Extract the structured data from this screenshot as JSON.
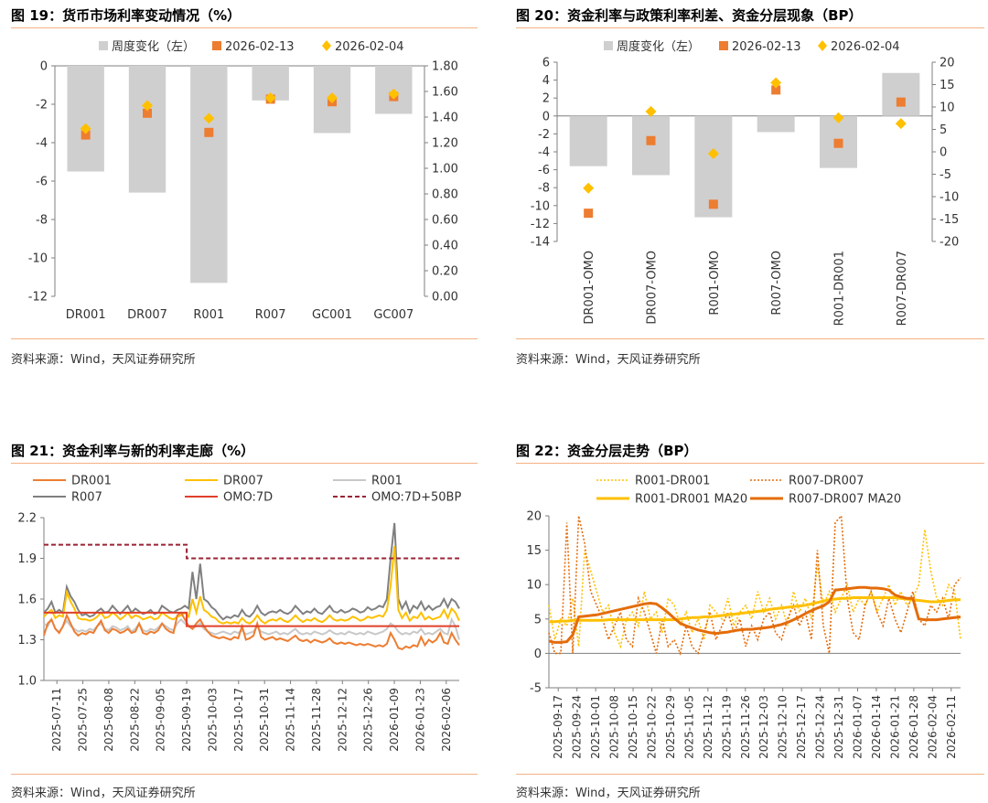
{
  "colors": {
    "bar": "#d0cfcf",
    "orange": "#ed7d31",
    "gold": "#ffc000",
    "darkorange": "#e46c0a",
    "gray": "#808080",
    "lightgray": "#c8c8c8",
    "red": "#e0402a",
    "maroon": "#9b2335",
    "accent_line": "#f4b183"
  },
  "source_text": "资料来源：Wind，天风证券研究所",
  "chart_data": [
    {
      "id": "fig19",
      "type": "bar",
      "title": "图 19：货币市场利率变动情况（%）",
      "legend": [
        "周度变化（左）",
        "2026-02-13",
        "2026-02-04"
      ],
      "categories": [
        "DR001",
        "DR007",
        "R001",
        "R007",
        "GC001",
        "GC007"
      ],
      "series": [
        {
          "name": "周度变化（左）",
          "axis": "left",
          "values": [
            -5.5,
            -6.6,
            -11.3,
            -1.8,
            -3.5,
            -2.5
          ]
        },
        {
          "name": "2026-02-13",
          "axis": "right",
          "values": [
            1.26,
            1.43,
            1.28,
            1.54,
            1.52,
            1.56
          ]
        },
        {
          "name": "2026-02-04",
          "axis": "right",
          "values": [
            1.31,
            1.49,
            1.39,
            1.55,
            1.55,
            1.58
          ]
        }
      ],
      "left_ticks": [
        "0",
        "-2",
        "-4",
        "-6",
        "-8",
        "-10",
        "-12"
      ],
      "right_ticks": [
        "1.80",
        "1.60",
        "1.40",
        "1.20",
        "1.00",
        "0.80",
        "0.60",
        "0.40",
        "0.20",
        "0.00"
      ],
      "ylim_left": [
        -12,
        0
      ],
      "ylim_right": [
        0,
        1.8
      ]
    },
    {
      "id": "fig20",
      "type": "bar",
      "title": "图 20：资金利率与政策利率利差、资金分层现象（BP）",
      "legend": [
        "周度变化（左）",
        "2026-02-13",
        "2026-02-04"
      ],
      "categories": [
        "DR001-OMO",
        "DR007-OMO",
        "R001-OMO",
        "R007-OMO",
        "R001-DR001",
        "R007-DR007"
      ],
      "series": [
        {
          "name": "周度变化（左）",
          "axis": "left",
          "values": [
            -5.6,
            -6.6,
            -11.3,
            -1.8,
            -5.8,
            4.8
          ]
        },
        {
          "name": "2026-02-13",
          "axis": "right",
          "values": [
            -13.7,
            2.5,
            -11.7,
            13.8,
            1.9,
            11.1
          ]
        },
        {
          "name": "2026-02-04",
          "axis": "right",
          "values": [
            -8.1,
            9.0,
            -0.4,
            15.4,
            7.6,
            6.3
          ]
        }
      ],
      "left_ticks": [
        "6",
        "4",
        "2",
        "0",
        "-2",
        "-4",
        "-6",
        "-8",
        "-10",
        "-12",
        "-14"
      ],
      "right_ticks": [
        "20",
        "15",
        "10",
        "5",
        "0",
        "-5",
        "-10",
        "-15",
        "-20"
      ],
      "ylim_left": [
        -14,
        6
      ],
      "ylim_right": [
        -20,
        20
      ]
    },
    {
      "id": "fig21",
      "type": "line",
      "title": "图 21：资金利率与新的利率走廊（%）",
      "legend": [
        "DR001",
        "DR007",
        "R001",
        "R007",
        "OMO:7D",
        "OMO:7D+50BP"
      ],
      "ylim": [
        1.0,
        2.2
      ],
      "y_ticks": [
        "2.2",
        "1.9",
        "1.6",
        "1.3",
        "1.0"
      ],
      "x_labels": [
        "2025-07-11",
        "2025-07-25",
        "2025-08-08",
        "2025-08-22",
        "2025-09-05",
        "2025-09-19",
        "2025-10-03",
        "2025-10-17",
        "2025-10-31",
        "2025-11-14",
        "2025-11-28",
        "2025-12-12",
        "2025-12-26",
        "2026-01-09",
        "2026-01-23",
        "2026-02-06"
      ],
      "series": [
        {
          "name": "R007",
          "values": [
            1.5,
            1.53,
            1.58,
            1.5,
            1.52,
            1.5,
            1.69,
            1.62,
            1.58,
            1.52,
            1.48,
            1.49,
            1.47,
            1.48,
            1.51,
            1.53,
            1.5,
            1.51,
            1.55,
            1.52,
            1.49,
            1.52,
            1.55,
            1.5,
            1.53,
            1.51,
            1.49,
            1.5,
            1.52,
            1.49,
            1.5,
            1.55,
            1.53,
            1.51,
            1.5,
            1.52,
            1.53,
            1.55,
            1.53,
            1.8,
            1.6,
            1.86,
            1.6,
            1.58,
            1.54,
            1.52,
            1.48,
            1.45,
            1.47,
            1.46,
            1.48,
            1.47,
            1.52,
            1.48,
            1.47,
            1.5,
            1.55,
            1.5,
            1.48,
            1.5,
            1.51,
            1.5,
            1.52,
            1.5,
            1.49,
            1.51,
            1.55,
            1.52,
            1.49,
            1.51,
            1.5,
            1.53,
            1.5,
            1.49,
            1.52,
            1.55,
            1.51,
            1.5,
            1.52,
            1.5,
            1.51,
            1.53,
            1.52,
            1.5,
            1.51,
            1.54,
            1.52,
            1.53,
            1.55,
            1.54,
            1.6,
            1.9,
            2.16,
            1.6,
            1.53,
            1.58,
            1.5,
            1.55,
            1.53,
            1.58,
            1.52,
            1.55,
            1.52,
            1.54,
            1.55,
            1.6,
            1.54,
            1.6,
            1.58,
            1.53
          ]
        },
        {
          "name": "R001",
          "values": [
            1.42,
            1.4,
            1.45,
            1.38,
            1.36,
            1.4,
            1.44,
            1.4,
            1.38,
            1.36,
            1.37,
            1.36,
            1.38,
            1.37,
            1.4,
            1.42,
            1.38,
            1.37,
            1.4,
            1.39,
            1.37,
            1.38,
            1.4,
            1.36,
            1.38,
            1.42,
            1.37,
            1.36,
            1.38,
            1.37,
            1.39,
            1.42,
            1.4,
            1.38,
            1.37,
            1.42,
            1.45,
            1.42,
            1.4,
            1.38,
            1.4,
            1.42,
            1.38,
            1.36,
            1.35,
            1.34,
            1.35,
            1.36,
            1.35,
            1.34,
            1.36,
            1.35,
            1.37,
            1.34,
            1.35,
            1.36,
            1.4,
            1.36,
            1.35,
            1.34,
            1.35,
            1.36,
            1.34,
            1.35,
            1.34,
            1.36,
            1.38,
            1.35,
            1.34,
            1.35,
            1.34,
            1.36,
            1.35,
            1.34,
            1.35,
            1.37,
            1.35,
            1.34,
            1.35,
            1.34,
            1.36,
            1.35,
            1.34,
            1.35,
            1.34,
            1.36,
            1.35,
            1.34,
            1.35,
            1.36,
            1.38,
            1.42,
            1.4,
            1.36,
            1.34,
            1.35,
            1.34,
            1.36,
            1.35,
            1.38,
            1.34,
            1.35,
            1.34,
            1.36,
            1.38,
            1.35,
            1.34,
            1.45,
            1.4,
            1.3
          ]
        },
        {
          "name": "DR007",
          "values": [
            1.47,
            1.5,
            1.52,
            1.46,
            1.48,
            1.47,
            1.65,
            1.58,
            1.53,
            1.46,
            1.45,
            1.45,
            1.44,
            1.45,
            1.47,
            1.5,
            1.46,
            1.47,
            1.5,
            1.48,
            1.45,
            1.47,
            1.5,
            1.46,
            1.48,
            1.47,
            1.45,
            1.46,
            1.47,
            1.45,
            1.46,
            1.5,
            1.48,
            1.46,
            1.45,
            1.47,
            1.48,
            1.5,
            1.47,
            1.6,
            1.5,
            1.62,
            1.52,
            1.5,
            1.47,
            1.46,
            1.43,
            1.42,
            1.43,
            1.42,
            1.43,
            1.42,
            1.46,
            1.43,
            1.42,
            1.44,
            1.48,
            1.44,
            1.42,
            1.44,
            1.45,
            1.44,
            1.46,
            1.44,
            1.43,
            1.45,
            1.48,
            1.45,
            1.43,
            1.45,
            1.44,
            1.46,
            1.44,
            1.43,
            1.45,
            1.48,
            1.45,
            1.44,
            1.45,
            1.44,
            1.45,
            1.47,
            1.46,
            1.44,
            1.45,
            1.47,
            1.46,
            1.47,
            1.48,
            1.47,
            1.52,
            1.7,
            1.99,
            1.52,
            1.46,
            1.5,
            1.44,
            1.47,
            1.46,
            1.5,
            1.45,
            1.47,
            1.45,
            1.46,
            1.47,
            1.52,
            1.46,
            1.53,
            1.5,
            1.44
          ]
        },
        {
          "name": "DR001",
          "values": [
            1.33,
            1.42,
            1.45,
            1.38,
            1.35,
            1.4,
            1.48,
            1.42,
            1.36,
            1.33,
            1.35,
            1.34,
            1.36,
            1.35,
            1.4,
            1.44,
            1.37,
            1.35,
            1.38,
            1.37,
            1.35,
            1.36,
            1.38,
            1.35,
            1.36,
            1.42,
            1.35,
            1.34,
            1.36,
            1.35,
            1.37,
            1.42,
            1.38,
            1.36,
            1.35,
            1.48,
            1.5,
            1.45,
            1.4,
            1.38,
            1.42,
            1.45,
            1.4,
            1.36,
            1.33,
            1.32,
            1.31,
            1.32,
            1.31,
            1.3,
            1.32,
            1.31,
            1.4,
            1.3,
            1.31,
            1.33,
            1.42,
            1.32,
            1.3,
            1.31,
            1.32,
            1.3,
            1.31,
            1.3,
            1.29,
            1.31,
            1.33,
            1.3,
            1.29,
            1.3,
            1.28,
            1.3,
            1.29,
            1.28,
            1.29,
            1.31,
            1.28,
            1.27,
            1.28,
            1.27,
            1.28,
            1.27,
            1.26,
            1.27,
            1.26,
            1.27,
            1.26,
            1.25,
            1.26,
            1.25,
            1.27,
            1.35,
            1.3,
            1.24,
            1.23,
            1.25,
            1.24,
            1.26,
            1.25,
            1.32,
            1.26,
            1.3,
            1.28,
            1.3,
            1.35,
            1.28,
            1.27,
            1.35,
            1.3,
            1.26
          ]
        }
      ],
      "corridor": {
        "omo_before": 1.5,
        "omo_after": 1.4,
        "upper_before": 2.0,
        "upper_after": 1.9,
        "switch_date": "2025-09-19"
      }
    },
    {
      "id": "fig22",
      "type": "line",
      "title": "图 22：资金分层走势（BP）",
      "legend": [
        "R001-DR001",
        "R007-DR007",
        "R001-DR001 MA20",
        "R007-DR007 MA20"
      ],
      "ylim": [
        -5,
        20
      ],
      "y_ticks": [
        "20",
        "15",
        "10",
        "5",
        "0",
        "-5"
      ],
      "x_labels": [
        "2025-09-17",
        "2025-09-24",
        "2025-10-01",
        "2025-10-08",
        "2025-10-15",
        "2025-10-22",
        "2025-10-29",
        "2025-11-05",
        "2025-11-12",
        "2025-11-19",
        "2025-11-26",
        "2025-12-03",
        "2025-12-10",
        "2025-12-17",
        "2025-12-24",
        "2025-12-31",
        "2026-01-07",
        "2026-01-14",
        "2026-01-21",
        "2026-01-28",
        "2026-02-04",
        "2026-02-11"
      ],
      "series": [
        {
          "name": "R001-DR001",
          "values": [
            7,
            2,
            5,
            4,
            8,
            1,
            15,
            12,
            9,
            6,
            7,
            3,
            1,
            5,
            6,
            4,
            9,
            5,
            6,
            3,
            8,
            7,
            4,
            6,
            3,
            5,
            2,
            7,
            6,
            5,
            8,
            4,
            6,
            7,
            5,
            9,
            6,
            8,
            5,
            7,
            4,
            9,
            6,
            8,
            5,
            13,
            7,
            9,
            6,
            8,
            10,
            6,
            8,
            7,
            9,
            6,
            8,
            10,
            7,
            9,
            7,
            8,
            10,
            18,
            12,
            8,
            7,
            10,
            9,
            2
          ]
        },
        {
          "name": "R007-DR007",
          "values": [
            3,
            0,
            0,
            19,
            0,
            20,
            16,
            9,
            7,
            5,
            2,
            4,
            6,
            2,
            1,
            8,
            6,
            3,
            0,
            5,
            1,
            2,
            0,
            4,
            1,
            0,
            3,
            6,
            2,
            4,
            6,
            3,
            5,
            1,
            4,
            2,
            5,
            6,
            3,
            2,
            5,
            7,
            4,
            6,
            2,
            15,
            4,
            0,
            19,
            20,
            8,
            3,
            2,
            7,
            9,
            6,
            4,
            8,
            5,
            3,
            6,
            9,
            5,
            4,
            7,
            6,
            8,
            5,
            10,
            11
          ]
        },
        {
          "name": "R001-DR001 MA20",
          "values": [
            4.6,
            4.6,
            4.7,
            4.7,
            4.8,
            4.8,
            4.8,
            4.8,
            4.8,
            4.8,
            4.9,
            4.9,
            4.9,
            4.9,
            4.9,
            4.9,
            4.9,
            4.9,
            4.9,
            4.9,
            4.9,
            4.9,
            5.0,
            5.1,
            5.2,
            5.2,
            5.3,
            5.3,
            5.4,
            5.5,
            5.6,
            5.7,
            5.8,
            5.9,
            6.0,
            6.1,
            6.2,
            6.4,
            6.5,
            6.6,
            6.7,
            6.8,
            6.9,
            7.0,
            7.2,
            7.4,
            7.6,
            7.8,
            7.9,
            8.0,
            8.0,
            8.1,
            8.1,
            8.1,
            8.1,
            8.1,
            8.1,
            8.1,
            8.1,
            8.0,
            7.9,
            7.8,
            7.7,
            7.6,
            7.5,
            7.5,
            7.6,
            7.7,
            7.8,
            7.8
          ]
        },
        {
          "name": "R007-DR007 MA20",
          "values": [
            1.8,
            1.6,
            1.6,
            1.7,
            2.7,
            5.3,
            5.4,
            5.5,
            5.6,
            5.8,
            6.0,
            6.2,
            6.4,
            6.6,
            6.8,
            7.0,
            7.2,
            7.3,
            7.2,
            6.6,
            5.9,
            5.1,
            4.4,
            4.0,
            3.7,
            3.4,
            3.2,
            3.0,
            2.9,
            3.0,
            3.1,
            3.3,
            3.4,
            3.5,
            3.5,
            3.6,
            3.7,
            3.8,
            4.0,
            4.2,
            4.5,
            4.9,
            5.3,
            5.8,
            6.2,
            6.6,
            6.9,
            7.5,
            9.2,
            9.3,
            9.4,
            9.5,
            9.6,
            9.6,
            9.5,
            9.5,
            9.4,
            9.2,
            8.5,
            8.2,
            8.0,
            8.0,
            5.0,
            4.9,
            4.9,
            4.9,
            5.0,
            5.1,
            5.2,
            5.3
          ]
        }
      ]
    }
  ]
}
